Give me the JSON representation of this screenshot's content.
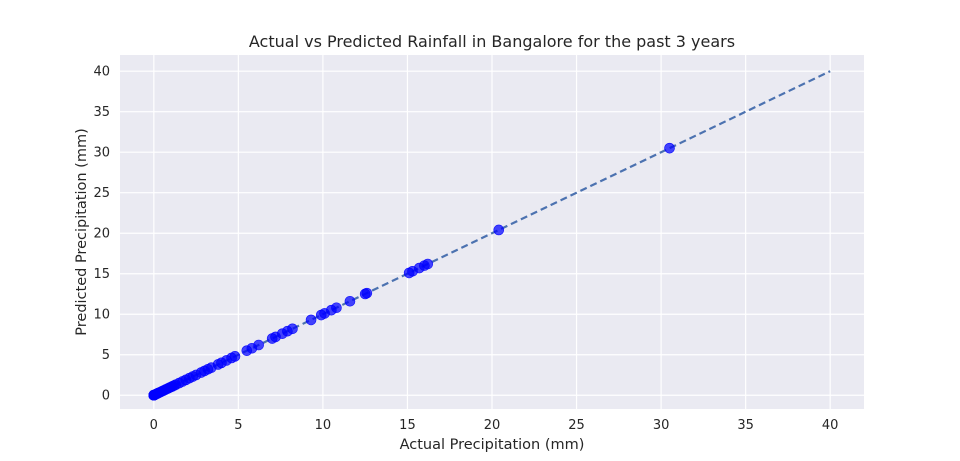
{
  "chart_data": {
    "type": "scatter",
    "title": "Actual vs Predicted Rainfall in Bangalore for the past 3 years",
    "xlabel": "Actual Precipitation (mm)",
    "ylabel": "Predicted Precipitation (mm)",
    "xlim": [
      -2,
      42
    ],
    "ylim": [
      -1.7,
      42
    ],
    "xticks": [
      0,
      5,
      10,
      15,
      20,
      25,
      30,
      35,
      40
    ],
    "yticks": [
      0,
      5,
      10,
      15,
      20,
      25,
      30,
      35,
      40
    ],
    "grid": true,
    "background_color": "#eaeaf2",
    "grid_color": "#ffffff",
    "point_color": "#0000ff",
    "line_color": "#4c72b0",
    "reference_line": {
      "style": "dashed",
      "x": [
        0,
        40
      ],
      "y": [
        0,
        40
      ]
    },
    "series": [
      {
        "x": [
          0,
          0,
          0,
          0,
          0,
          0,
          0,
          0,
          0.05,
          0.1,
          0.15,
          0.2,
          0.25,
          0.3,
          0.4,
          0.5,
          0.6,
          0.7,
          0.8,
          0.9,
          1.0,
          1.1,
          1.2,
          1.3,
          1.5,
          1.7,
          1.9,
          2.1,
          2.3,
          2.5,
          2.8,
          3.0,
          3.2,
          3.4,
          3.8,
          4.0,
          4.3,
          4.6,
          4.8,
          5.5,
          5.8,
          6.2,
          7.0,
          7.2,
          7.6,
          7.9,
          8.2,
          9.3,
          9.9,
          10.1,
          10.5,
          10.8,
          11.6,
          12.5,
          12.6,
          15.1,
          15.3,
          15.7,
          16.0,
          16.2,
          20.4,
          30.5
        ],
        "y": [
          0,
          0,
          0,
          0,
          0,
          0,
          0,
          0,
          0.05,
          0.1,
          0.15,
          0.2,
          0.25,
          0.3,
          0.4,
          0.5,
          0.6,
          0.7,
          0.8,
          0.9,
          1.0,
          1.1,
          1.2,
          1.3,
          1.5,
          1.7,
          1.9,
          2.1,
          2.3,
          2.5,
          2.8,
          3.0,
          3.2,
          3.4,
          3.8,
          4.0,
          4.3,
          4.6,
          4.8,
          5.5,
          5.8,
          6.2,
          7.0,
          7.2,
          7.6,
          7.9,
          8.2,
          9.3,
          9.9,
          10.1,
          10.5,
          10.8,
          11.6,
          12.5,
          12.6,
          15.1,
          15.3,
          15.7,
          16.0,
          16.2,
          20.4,
          30.5
        ]
      }
    ]
  }
}
